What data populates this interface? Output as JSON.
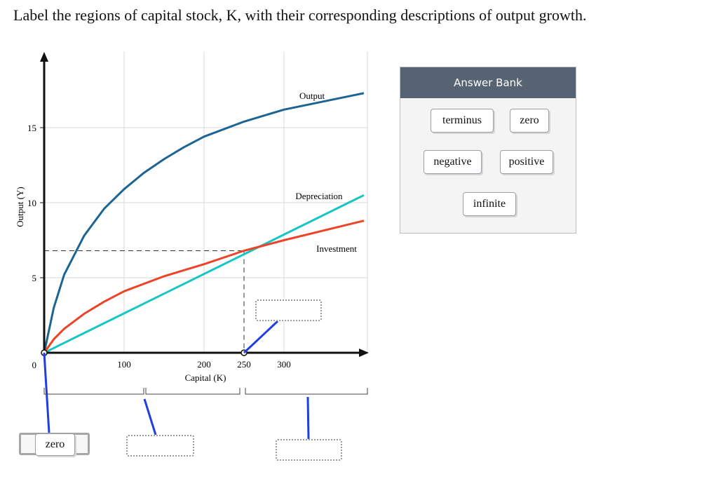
{
  "question": "Label the regions of capital stock, K, with their corresponding descriptions of output growth.",
  "chart_data": {
    "type": "line",
    "xlabel": "Capital (K)",
    "ylabel": "Output (Y)",
    "xlim": [
      0,
      300
    ],
    "ylim": [
      0,
      18
    ],
    "x_ticks": [
      "100",
      "200",
      "250",
      "300"
    ],
    "y_ticks": [
      "0",
      "5",
      "10",
      "15"
    ],
    "steady_state": {
      "k": 250,
      "y": 6.8
    },
    "series": [
      {
        "name": "Output",
        "color": "#1c6593",
        "points": [
          [
            0,
            0
          ],
          [
            12,
            3
          ],
          [
            25,
            5.2
          ],
          [
            50,
            7.8
          ],
          [
            75,
            9.6
          ],
          [
            100,
            10.9
          ],
          [
            125,
            12.0
          ],
          [
            150,
            12.9
          ],
          [
            175,
            13.7
          ],
          [
            200,
            14.4
          ],
          [
            250,
            15.4
          ],
          [
            300,
            16.2
          ],
          [
            400,
            17.3
          ]
        ]
      },
      {
        "name": "Depreciation",
        "color": "#16c6c6",
        "points": [
          [
            0,
            0
          ],
          [
            400,
            10.5
          ]
        ]
      },
      {
        "name": "Investment",
        "color": "#ef4328",
        "points": [
          [
            0,
            0
          ],
          [
            12,
            0.9
          ],
          [
            25,
            1.6
          ],
          [
            50,
            2.6
          ],
          [
            75,
            3.4
          ],
          [
            100,
            4.1
          ],
          [
            150,
            5.1
          ],
          [
            200,
            5.9
          ],
          [
            250,
            6.8
          ],
          [
            300,
            7.5
          ],
          [
            400,
            8.8
          ]
        ]
      }
    ]
  },
  "answer_bank": {
    "title": "Answer Bank",
    "items": [
      "terminus",
      "zero",
      "negative",
      "positive",
      "infinite"
    ]
  },
  "slots": [
    {
      "label": "zero"
    },
    {
      "label": ""
    },
    {
      "label": ""
    },
    {
      "label": ""
    }
  ]
}
